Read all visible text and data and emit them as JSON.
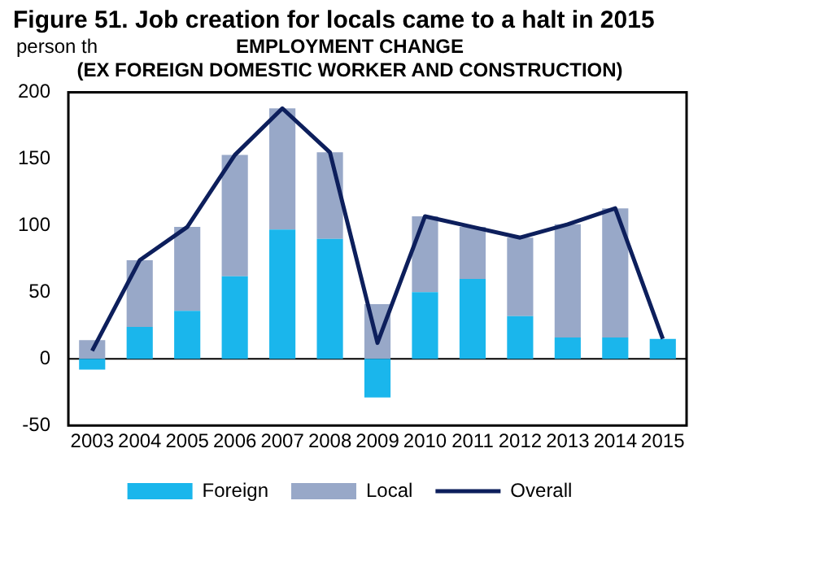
{
  "chart_data": {
    "type": "bar",
    "title": "Figure 51. Job creation for locals came to a halt in 2015",
    "subtitle": "EMPLOYMENT CHANGE\n(EX FOREIGN DOMESTIC WORKER AND CONSTRUCTION)",
    "ylabel": "person th",
    "categories": [
      "2003",
      "2004",
      "2005",
      "2006",
      "2007",
      "2008",
      "2009",
      "2010",
      "2011",
      "2012",
      "2013",
      "2014",
      "2015"
    ],
    "stacked": true,
    "series": [
      {
        "name": "Foreign",
        "color": "#1ab6ec",
        "values": [
          -8,
          24,
          36,
          62,
          97,
          90,
          -29,
          50,
          60,
          32,
          16,
          16,
          15
        ]
      },
      {
        "name": "Local",
        "color": "#98a8c8",
        "values": [
          14,
          50,
          63,
          91,
          91,
          65,
          41,
          57,
          39,
          59,
          85,
          97,
          0
        ]
      },
      {
        "name": "Overall",
        "type": "line",
        "color": "#0d1f5c",
        "values": [
          6,
          74,
          99,
          153,
          188,
          155,
          12,
          107,
          99,
          91,
          101,
          113,
          15
        ]
      }
    ],
    "ylim": [
      -50,
      200
    ],
    "yticks": [
      -50,
      0,
      50,
      100,
      150,
      200
    ],
    "ref_lines": [
      {
        "axis": "y",
        "value": 0,
        "color": "#000000"
      }
    ],
    "grid": false,
    "legend": "bottom",
    "marker": "none"
  }
}
